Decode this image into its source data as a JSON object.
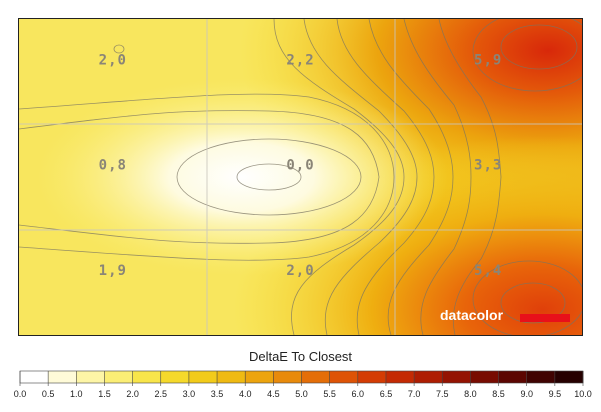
{
  "chart_data": {
    "type": "heatmap",
    "title": "DeltaE To Closest",
    "grid": true,
    "rows": 3,
    "cols": 3,
    "values": [
      [
        2.0,
        2.2,
        5.9
      ],
      [
        0.8,
        0.0,
        3.3
      ],
      [
        1.9,
        2.0,
        5.4
      ]
    ],
    "value_labels": [
      [
        "2,0",
        "2,2",
        "5,9"
      ],
      [
        "0,8",
        "0,0",
        "3,3"
      ],
      [
        "1,9",
        "2,0",
        "5,4"
      ]
    ],
    "colorbar": {
      "min": 0.0,
      "max": 10.0,
      "step": 0.5,
      "ticks": [
        "0.0",
        "0.5",
        "1.0",
        "1.5",
        "2.0",
        "2.5",
        "3.0",
        "3.5",
        "4.0",
        "4.5",
        "5.0",
        "5.5",
        "6.0",
        "6.5",
        "7.0",
        "7.5",
        "8.0",
        "8.5",
        "9.0",
        "9.5",
        "10.0"
      ],
      "colors": [
        "#ffffff",
        "#fffbd8",
        "#fdf5a6",
        "#fbee75",
        "#f8e54a",
        "#f5d92b",
        "#f2cb1a",
        "#efba12",
        "#eca40e",
        "#e88a0b",
        "#e46e08",
        "#de5306",
        "#d43c04",
        "#c42a03",
        "#ae1d02",
        "#941302",
        "#780c01",
        "#5c0601",
        "#400301",
        "#260000"
      ]
    }
  },
  "brand": {
    "name": "datacolor",
    "bar_color": "#e8101a"
  }
}
